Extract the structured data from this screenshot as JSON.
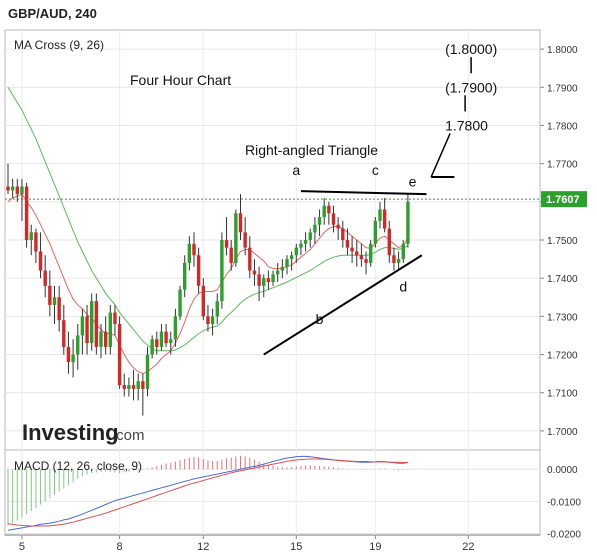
{
  "header": {
    "symbol": "GBP/AUD, 240"
  },
  "watermark": {
    "brand": "Investing",
    "suffix": ".com"
  },
  "colors": {
    "up": "#2ca02c",
    "down": "#d62728",
    "ma_fast": "#f06262",
    "ma_slow": "#5cb85c",
    "macd_line": "#4a6cd4",
    "signal_line": "#e05050",
    "current_price_line": "#2ca02c",
    "annotation": "#000000"
  },
  "chart_data": [
    {
      "type": "candlestick",
      "indicator_label": "MA Cross (9, 26)",
      "chart_title": "Four Hour Chart",
      "pattern_label": "Right-angled Triangle",
      "y_ticks": [
        "1.7000",
        "1.7100",
        "1.7200",
        "1.7300",
        "1.7400",
        "1.7500",
        "1.7600",
        "1.7700",
        "1.7800",
        "1.7900",
        "1.8000"
      ],
      "ylim": [
        1.695,
        1.805
      ],
      "x_ticks": [
        {
          "label": "5",
          "index": 3
        },
        {
          "label": "8",
          "index": 24
        },
        {
          "label": "12",
          "index": 42
        },
        {
          "label": "15",
          "index": 62
        },
        {
          "label": "19",
          "index": 79
        },
        {
          "label": "22",
          "index": 99
        }
      ],
      "x_count": 107,
      "current_price": "1.7607",
      "current_value": 1.7607,
      "ohlc": [
        [
          1.764,
          1.77,
          1.762,
          1.763
        ],
        [
          1.763,
          1.766,
          1.761,
          1.764
        ],
        [
          1.764,
          1.766,
          1.76,
          1.762
        ],
        [
          1.762,
          1.766,
          1.755,
          1.764
        ],
        [
          1.764,
          1.765,
          1.748,
          1.75
        ],
        [
          1.75,
          1.754,
          1.746,
          1.752
        ],
        [
          1.752,
          1.753,
          1.744,
          1.747
        ],
        [
          1.747,
          1.752,
          1.74,
          1.742
        ],
        [
          1.742,
          1.746,
          1.735,
          1.738
        ],
        [
          1.738,
          1.742,
          1.73,
          1.733
        ],
        [
          1.733,
          1.738,
          1.728,
          1.735
        ],
        [
          1.735,
          1.738,
          1.726,
          1.729
        ],
        [
          1.729,
          1.733,
          1.72,
          1.722
        ],
        [
          1.722,
          1.726,
          1.715,
          1.718
        ],
        [
          1.718,
          1.724,
          1.714,
          1.72
        ],
        [
          1.72,
          1.728,
          1.716,
          1.725
        ],
        [
          1.725,
          1.732,
          1.72,
          1.73
        ],
        [
          1.73,
          1.733,
          1.72,
          1.723
        ],
        [
          1.723,
          1.736,
          1.721,
          1.734
        ],
        [
          1.734,
          1.736,
          1.72,
          1.722
        ],
        [
          1.722,
          1.728,
          1.719,
          1.726
        ],
        [
          1.726,
          1.73,
          1.72,
          1.722
        ],
        [
          1.722,
          1.733,
          1.72,
          1.731
        ],
        [
          1.731,
          1.733,
          1.725,
          1.728
        ],
        [
          1.728,
          1.73,
          1.711,
          1.712
        ],
        [
          1.712,
          1.715,
          1.709,
          1.711
        ],
        [
          1.711,
          1.714,
          1.709,
          1.712
        ],
        [
          1.712,
          1.716,
          1.708,
          1.711
        ],
        [
          1.711,
          1.715,
          1.708,
          1.713
        ],
        [
          1.713,
          1.715,
          1.704,
          1.711
        ],
        [
          1.711,
          1.722,
          1.709,
          1.72
        ],
        [
          1.72,
          1.725,
          1.719,
          1.724
        ],
        [
          1.724,
          1.726,
          1.72,
          1.722
        ],
        [
          1.722,
          1.728,
          1.721,
          1.726
        ],
        [
          1.726,
          1.728,
          1.722,
          1.723
        ],
        [
          1.723,
          1.726,
          1.72,
          1.724
        ],
        [
          1.724,
          1.732,
          1.722,
          1.73
        ],
        [
          1.73,
          1.738,
          1.729,
          1.737
        ],
        [
          1.737,
          1.746,
          1.735,
          1.744
        ],
        [
          1.744,
          1.751,
          1.742,
          1.749
        ],
        [
          1.749,
          1.752,
          1.743,
          1.746
        ],
        [
          1.746,
          1.748,
          1.736,
          1.738
        ],
        [
          1.738,
          1.74,
          1.729,
          1.73
        ],
        [
          1.73,
          1.733,
          1.726,
          1.728
        ],
        [
          1.728,
          1.732,
          1.725,
          1.73
        ],
        [
          1.73,
          1.736,
          1.728,
          1.734
        ],
        [
          1.734,
          1.752,
          1.732,
          1.75
        ],
        [
          1.75,
          1.756,
          1.746,
          1.748
        ],
        [
          1.748,
          1.75,
          1.742,
          1.744
        ],
        [
          1.744,
          1.758,
          1.743,
          1.757
        ],
        [
          1.757,
          1.762,
          1.75,
          1.752
        ],
        [
          1.752,
          1.756,
          1.746,
          1.748
        ],
        [
          1.748,
          1.751,
          1.74,
          1.742
        ],
        [
          1.742,
          1.745,
          1.738,
          1.741
        ],
        [
          1.741,
          1.743,
          1.734,
          1.738
        ],
        [
          1.738,
          1.741,
          1.735,
          1.74
        ],
        [
          1.74,
          1.742,
          1.737,
          1.739
        ],
        [
          1.739,
          1.742,
          1.738,
          1.741
        ],
        [
          1.741,
          1.744,
          1.739,
          1.742
        ],
        [
          1.742,
          1.745,
          1.74,
          1.743
        ],
        [
          1.743,
          1.746,
          1.741,
          1.745
        ],
        [
          1.745,
          1.747,
          1.742,
          1.746
        ],
        [
          1.746,
          1.749,
          1.744,
          1.748
        ],
        [
          1.748,
          1.75,
          1.746,
          1.749
        ],
        [
          1.749,
          1.752,
          1.747,
          1.75
        ],
        [
          1.75,
          1.753,
          1.748,
          1.752
        ],
        [
          1.752,
          1.756,
          1.749,
          1.754
        ],
        [
          1.754,
          1.758,
          1.751,
          1.756
        ],
        [
          1.756,
          1.761,
          1.754,
          1.759
        ],
        [
          1.759,
          1.76,
          1.754,
          1.757
        ],
        [
          1.757,
          1.759,
          1.752,
          1.754
        ],
        [
          1.754,
          1.756,
          1.75,
          1.753
        ],
        [
          1.753,
          1.755,
          1.748,
          1.75
        ],
        [
          1.75,
          1.753,
          1.746,
          1.748
        ],
        [
          1.748,
          1.751,
          1.744,
          1.747
        ],
        [
          1.747,
          1.75,
          1.743,
          1.746
        ],
        [
          1.746,
          1.749,
          1.743,
          1.745
        ],
        [
          1.745,
          1.747,
          1.741,
          1.744
        ],
        [
          1.744,
          1.75,
          1.743,
          1.749
        ],
        [
          1.749,
          1.756,
          1.748,
          1.755
        ],
        [
          1.755,
          1.76,
          1.753,
          1.758
        ],
        [
          1.758,
          1.761,
          1.752,
          1.753
        ],
        [
          1.753,
          1.755,
          1.744,
          1.746
        ],
        [
          1.746,
          1.748,
          1.742,
          1.744
        ],
        [
          1.744,
          1.747,
          1.742,
          1.745
        ],
        [
          1.745,
          1.75,
          1.744,
          1.749
        ],
        [
          1.749,
          1.762,
          1.748,
          1.76
        ]
      ],
      "ma_fast": [
        1.76,
        1.761,
        1.7615,
        1.762,
        1.76,
        1.7585,
        1.7565,
        1.754,
        1.7515,
        1.749,
        1.746,
        1.743,
        1.74,
        1.737,
        1.7345,
        1.733,
        1.732,
        1.7305,
        1.7295,
        1.728,
        1.7265,
        1.7255,
        1.7255,
        1.725,
        1.7225,
        1.72,
        1.718,
        1.7165,
        1.7155,
        1.715,
        1.7155,
        1.7165,
        1.7175,
        1.719,
        1.72,
        1.721,
        1.723,
        1.7255,
        1.7285,
        1.732,
        1.7345,
        1.736,
        1.7365,
        1.7365,
        1.7365,
        1.737,
        1.739,
        1.741,
        1.7425,
        1.745,
        1.747,
        1.7475,
        1.7475,
        1.7465,
        1.7455,
        1.7445,
        1.743,
        1.7425,
        1.7425,
        1.7425,
        1.743,
        1.7435,
        1.7445,
        1.7455,
        1.7465,
        1.7475,
        1.749,
        1.7505,
        1.752,
        1.753,
        1.7535,
        1.7535,
        1.753,
        1.752,
        1.751,
        1.75,
        1.749,
        1.748,
        1.7478,
        1.749,
        1.7505,
        1.751,
        1.75,
        1.749,
        1.748,
        1.7485,
        1.7505
      ],
      "ma_slow": [
        1.79,
        1.788,
        1.786,
        1.784,
        1.7815,
        1.779,
        1.7765,
        1.7735,
        1.7705,
        1.7675,
        1.7645,
        1.7615,
        1.7585,
        1.7555,
        1.7525,
        1.7495,
        1.747,
        1.7445,
        1.742,
        1.74,
        1.738,
        1.736,
        1.7345,
        1.733,
        1.731,
        1.7295,
        1.728,
        1.7265,
        1.725,
        1.7235,
        1.7225,
        1.7215,
        1.721,
        1.721,
        1.721,
        1.721,
        1.7212,
        1.7218,
        1.7225,
        1.7235,
        1.7245,
        1.7255,
        1.7262,
        1.7268,
        1.7272,
        1.7275,
        1.7285,
        1.73,
        1.731,
        1.7322,
        1.7335,
        1.7345,
        1.7352,
        1.7358,
        1.7362,
        1.7366,
        1.737,
        1.7375,
        1.738,
        1.7385,
        1.739,
        1.7396,
        1.7402,
        1.7408,
        1.7414,
        1.742,
        1.7428,
        1.7436,
        1.7444,
        1.745,
        1.7455,
        1.7458,
        1.746,
        1.746,
        1.746,
        1.746,
        1.746,
        1.746,
        1.7462,
        1.7468,
        1.7475,
        1.748,
        1.748,
        1.7478,
        1.7476,
        1.7478,
        1.7485
      ],
      "annotations": {
        "point_labels": [
          {
            "text": "a",
            "index": 62,
            "value": 1.767
          },
          {
            "text": "b",
            "index": 67,
            "value": 1.728
          },
          {
            "text": "c",
            "index": 79,
            "value": 1.767
          },
          {
            "text": "d",
            "index": 85,
            "value": 1.7365
          },
          {
            "text": "e",
            "index": 87,
            "value": 1.764
          }
        ],
        "resistance_line": {
          "from": [
            63,
            1.7628
          ],
          "to": [
            90,
            1.762
          ]
        },
        "support_line": {
          "from": [
            55,
            1.72
          ],
          "to": [
            89,
            1.746
          ]
        },
        "tail_line": {
          "from": [
            91,
            1.7665
          ],
          "to": [
            96,
            1.7665
          ]
        },
        "targets": [
          {
            "text": "1.7800",
            "index": 94,
            "value": 1.78
          },
          {
            "text": "(1.7900)",
            "index": 94,
            "value": 1.79
          },
          {
            "text": "(1.8000)",
            "index": 94,
            "value": 1.8
          }
        ]
      }
    },
    {
      "type": "line",
      "indicator_label": "MACD (12, 26, close, 9)",
      "y_ticks": [
        "0.0000",
        "-0.0100",
        "-0.0200"
      ],
      "ylim": [
        -0.0205,
        0.006
      ],
      "histogram": [
        -0.0175,
        -0.0168,
        -0.016,
        -0.015,
        -0.014,
        -0.013,
        -0.012,
        -0.011,
        -0.01,
        -0.009,
        -0.008,
        -0.007,
        -0.006,
        -0.005,
        -0.004,
        -0.003,
        -0.0022,
        -0.0016,
        -0.0012,
        -0.001,
        -0.0009,
        -0.0008,
        -0.0008,
        -0.001,
        -0.0012,
        -0.001,
        -0.0008,
        -0.0006,
        -0.0004,
        -0.0002,
        0.0002,
        0.0006,
        0.001,
        0.0014,
        0.0018,
        0.002,
        0.0024,
        0.0028,
        0.0032,
        0.0036,
        0.0038,
        0.0036,
        0.0032,
        0.0028,
        0.0026,
        0.0026,
        0.003,
        0.0034,
        0.0036,
        0.004,
        0.0042,
        0.004,
        0.0036,
        0.003,
        0.0024,
        0.0018,
        0.0014,
        0.001,
        0.0008,
        0.0006,
        0.0005,
        0.0006,
        0.0008,
        0.001,
        0.0012,
        0.0012,
        0.0011,
        0.001,
        0.0009,
        0.0008,
        0.0006,
        0.0004,
        0.0002,
        0.0001,
        0.0,
        -0.0001,
        -0.0002,
        -0.0002,
        -0.0001,
        0.0,
        0.0002,
        0.0002,
        0.0,
        -0.0002,
        -0.0004,
        -0.0002,
        0.0002
      ],
      "series": [
        {
          "key": "macd",
          "values": [
            -0.019,
            -0.0188,
            -0.0185,
            -0.0183,
            -0.018,
            -0.0178,
            -0.0175,
            -0.0172,
            -0.017,
            -0.0168,
            -0.0165,
            -0.0162,
            -0.0158,
            -0.0155,
            -0.015,
            -0.0145,
            -0.014,
            -0.0134,
            -0.0128,
            -0.0122,
            -0.0116,
            -0.011,
            -0.0104,
            -0.0098,
            -0.0094,
            -0.009,
            -0.0086,
            -0.0082,
            -0.0078,
            -0.0074,
            -0.007,
            -0.0066,
            -0.0062,
            -0.0058,
            -0.0054,
            -0.005,
            -0.0046,
            -0.0042,
            -0.0038,
            -0.0034,
            -0.003,
            -0.0027,
            -0.0024,
            -0.0021,
            -0.0018,
            -0.0015,
            -0.0012,
            -0.0009,
            -0.0006,
            -0.0003,
            0.0,
            0.0003,
            0.0006,
            0.0009,
            0.0012,
            0.0016,
            0.002,
            0.0024,
            0.0028,
            0.0032,
            0.0035,
            0.0037,
            0.0039,
            0.004,
            0.004,
            0.0039,
            0.0037,
            0.0035,
            0.0033,
            0.0031,
            0.0029,
            0.0027,
            0.0026,
            0.0025,
            0.0024,
            0.0023,
            0.0022,
            0.0022,
            0.0022,
            0.0023,
            0.0024,
            0.0024,
            0.0022,
            0.002,
            0.0019,
            0.0019,
            0.0021
          ]
        },
        {
          "key": "signal",
          "values": [
            -0.017,
            -0.0172,
            -0.0174,
            -0.0175,
            -0.0176,
            -0.0177,
            -0.0177,
            -0.0177,
            -0.0177,
            -0.0176,
            -0.0175,
            -0.0173,
            -0.0171,
            -0.0168,
            -0.0165,
            -0.0161,
            -0.0157,
            -0.0153,
            -0.0149,
            -0.0145,
            -0.0141,
            -0.0137,
            -0.0132,
            -0.0127,
            -0.0122,
            -0.0117,
            -0.0112,
            -0.0107,
            -0.0102,
            -0.0097,
            -0.0092,
            -0.0087,
            -0.0082,
            -0.0077,
            -0.0072,
            -0.0067,
            -0.0062,
            -0.0057,
            -0.0052,
            -0.0047,
            -0.0043,
            -0.0039,
            -0.0035,
            -0.0031,
            -0.0027,
            -0.0023,
            -0.0019,
            -0.0015,
            -0.0011,
            -0.0008,
            -0.0005,
            -0.0002,
            0.0001,
            0.0004,
            0.0007,
            0.001,
            0.0013,
            0.0016,
            0.0019,
            0.0022,
            0.0025,
            0.0027,
            0.0029,
            0.003,
            0.0031,
            0.0032,
            0.0032,
            0.0032,
            0.0031,
            0.003,
            0.0029,
            0.0028,
            0.0027,
            0.0026,
            0.0025,
            0.0024,
            0.0024,
            0.0024,
            0.0023,
            0.0023,
            0.0023,
            0.0023,
            0.0022,
            0.0022,
            0.0022,
            0.0021,
            0.0021
          ]
        }
      ]
    }
  ]
}
